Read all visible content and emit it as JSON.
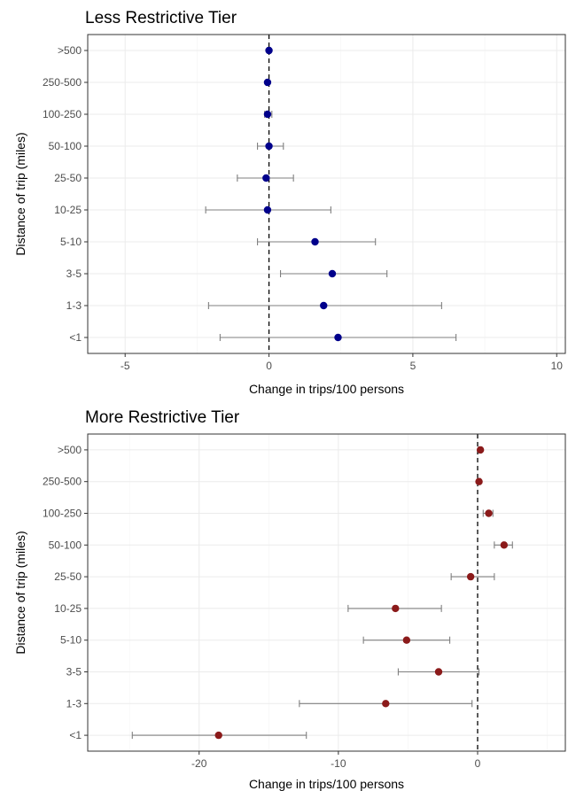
{
  "chart_data": [
    {
      "type": "scatter",
      "title": "Less Restrictive Tier",
      "xlabel": "Change in trips/100 persons",
      "ylabel": "Distance of trip (miles)",
      "xlim": [
        -6.3,
        10.3
      ],
      "x_ticks": [
        -5,
        0,
        5,
        10
      ],
      "x_tick_labels": [
        "-5",
        "0",
        "5",
        "10"
      ],
      "categories": [
        ">500",
        "250-500",
        "100-250",
        "50-100",
        "25-50",
        "10-25",
        "5-10",
        "3-5",
        "1-3",
        "<1"
      ],
      "estimates": [
        0.0,
        -0.05,
        -0.05,
        0.0,
        -0.1,
        -0.05,
        1.6,
        2.2,
        1.9,
        2.4
      ],
      "ci_low": [
        -0.05,
        -0.1,
        -0.15,
        -0.4,
        -1.1,
        -2.2,
        -0.4,
        0.4,
        -2.1,
        -1.7
      ],
      "ci_high": [
        0.05,
        0.0,
        0.1,
        0.5,
        0.85,
        2.15,
        3.7,
        4.1,
        6.0,
        6.5
      ],
      "reference_line_x": 0,
      "grid": true,
      "point_color": "#00008b"
    },
    {
      "type": "scatter",
      "title": "More Restrictive Tier",
      "xlabel": "Change in trips/100 persons",
      "ylabel": "Distance of trip (miles)",
      "xlim": [
        -28,
        6.3
      ],
      "x_ticks": [
        -20,
        -10,
        0
      ],
      "x_tick_labels": [
        "-20",
        "-10",
        "0"
      ],
      "categories": [
        ">500",
        "250-500",
        "100-250",
        "50-100",
        "25-50",
        "10-25",
        "5-10",
        "3-5",
        "1-3",
        "<1"
      ],
      "estimates": [
        0.2,
        0.1,
        0.8,
        1.9,
        -0.5,
        -5.9,
        -5.1,
        -2.8,
        -6.6,
        -18.6
      ],
      "ci_low": [
        0.1,
        0.0,
        0.4,
        1.2,
        -1.9,
        -9.3,
        -8.2,
        -5.7,
        -12.8,
        -24.8
      ],
      "ci_high": [
        0.3,
        0.2,
        1.1,
        2.5,
        1.2,
        -2.6,
        -2.0,
        0.1,
        -0.4,
        -12.3
      ],
      "reference_line_x": 0,
      "grid": true,
      "point_color": "#8b1a1a"
    }
  ]
}
